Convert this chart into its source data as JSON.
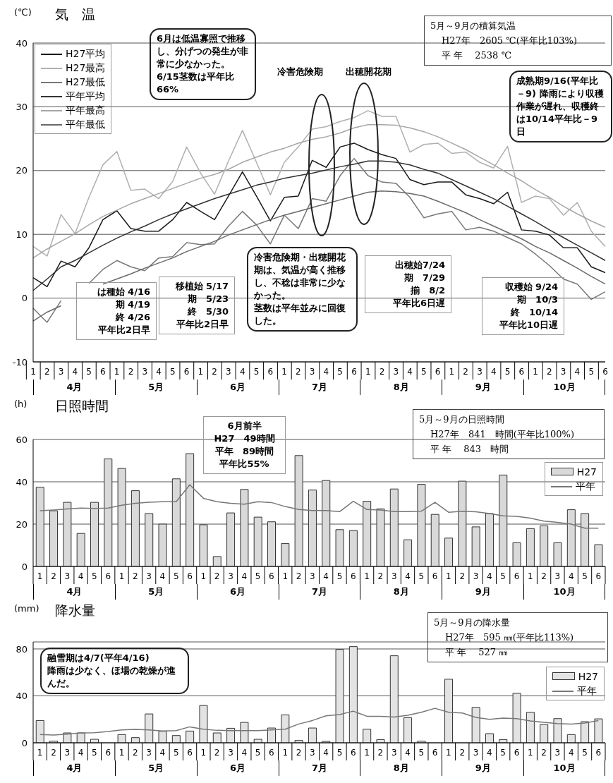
{
  "chart_data": [
    {
      "type": "line",
      "title": "気　温",
      "ylabel": "(℃)",
      "categories": [
        "1",
        "2",
        "3",
        "4",
        "5",
        "6",
        "1",
        "2",
        "3",
        "4",
        "5",
        "6",
        "1",
        "2",
        "3",
        "4",
        "5",
        "6",
        "1",
        "2",
        "3",
        "4",
        "5",
        "6",
        "1",
        "2",
        "3",
        "4",
        "5",
        "6",
        "1",
        "2",
        "3",
        "4",
        "5",
        "6",
        "1",
        "2",
        "3",
        "4",
        "5",
        "6"
      ],
      "series": [
        {
          "name": "H27平均",
          "color": "#1a1a1a",
          "values": [
            3.2,
            1.8,
            5.8,
            4.9,
            7.9,
            12.3,
            13.7,
            10.9,
            10.5,
            10.5,
            12.3,
            15.0,
            13.6,
            12.3,
            16.0,
            19.8,
            16.0,
            12.1,
            15.8,
            16.0,
            21.6,
            20.5,
            23.7,
            24.3,
            23.3,
            22.5,
            21.9,
            18.6,
            17.8,
            18.2,
            18.2,
            16.2,
            15.6,
            14.8,
            16.6,
            10.7,
            10.5,
            9.9,
            7.9,
            7.9,
            4.9,
            4.0
          ]
        },
        {
          "name": "H27最高",
          "color": "#b0b0b0",
          "values": [
            8.1,
            6.6,
            13.1,
            10.1,
            15.8,
            20.9,
            23.0,
            16.9,
            17.1,
            15.6,
            18.3,
            23.7,
            19.6,
            16.3,
            21.5,
            26.3,
            21.3,
            16.2,
            21.3,
            23.7,
            26.5,
            26.9,
            27.7,
            28.3,
            29.4,
            28.5,
            28.5,
            22.9,
            24.1,
            24.3,
            22.7,
            22.9,
            21.3,
            20.4,
            23.8,
            15.0,
            16.0,
            15.6,
            13.0,
            15.0,
            10.5,
            8.1
          ]
        },
        {
          "name": "H27最低",
          "color": "#777777",
          "values": [
            -1.6,
            -3.8,
            -0.4,
            null,
            2.3,
            4.5,
            5.9,
            4.9,
            4.3,
            6.3,
            6.5,
            8.7,
            8.4,
            8.5,
            11.3,
            13.6,
            11.5,
            8.5,
            13.0,
            10.9,
            15.6,
            15.2,
            19.2,
            21.9,
            19.2,
            18.2,
            18.0,
            15.8,
            12.6,
            13.2,
            13.6,
            10.7,
            11.1,
            10.5,
            9.5,
            8.5,
            6.9,
            5.1,
            3.0,
            2.2,
            -0.2,
            1.0
          ]
        },
        {
          "name": "平年平均",
          "color": "#333333",
          "values": [
            1.2,
            3.0,
            4.9,
            5.9,
            7.1,
            8.3,
            9.4,
            10.4,
            11.3,
            12.3,
            13.2,
            14.0,
            14.8,
            15.6,
            16.3,
            17.0,
            17.7,
            18.2,
            18.8,
            19.2,
            19.6,
            20.1,
            20.6,
            21.0,
            21.5,
            21.5,
            21.3,
            20.9,
            20.2,
            19.6,
            18.6,
            17.6,
            16.6,
            15.6,
            14.4,
            13.2,
            12.0,
            10.7,
            9.5,
            8.3,
            7.1,
            5.9
          ]
        },
        {
          "name": "平年最高",
          "color": "#a6a6a6",
          "values": [
            6.3,
            7.7,
            8.9,
            10.1,
            11.5,
            12.8,
            13.8,
            14.8,
            15.6,
            16.4,
            17.2,
            18.0,
            18.8,
            19.4,
            20.2,
            21.3,
            22.1,
            22.9,
            23.5,
            24.3,
            24.9,
            25.3,
            25.9,
            26.7,
            27.2,
            27.2,
            27.1,
            26.7,
            26.1,
            25.3,
            24.3,
            23.3,
            22.1,
            20.9,
            19.6,
            18.4,
            17.0,
            15.8,
            14.4,
            13.2,
            12.1,
            11.1
          ]
        },
        {
          "name": "平年最低",
          "color": "#6a6a6a",
          "values": [
            -3.6,
            -2.2,
            -1.2,
            null,
            null,
            2.2,
            3.0,
            3.8,
            4.7,
            5.5,
            6.3,
            7.3,
            8.1,
            8.9,
            9.9,
            10.7,
            11.5,
            12.3,
            13.0,
            13.6,
            14.2,
            14.8,
            15.4,
            16.0,
            16.6,
            16.8,
            16.7,
            16.4,
            16.0,
            15.2,
            14.3,
            13.4,
            12.3,
            11.3,
            10.3,
            9.3,
            8.1,
            7.1,
            5.9,
            4.7,
            3.4,
            2.2
          ]
        }
      ],
      "ylim": [
        -10,
        40
      ],
      "yticks": [
        -10,
        0,
        10,
        20,
        30,
        40
      ],
      "grid": "y",
      "legend": "top left",
      "annotations": [
        "4月",
        "5月",
        "6月",
        "7月",
        "8月",
        "9月",
        "10月",
        "6月は低温寡照で推移し、分げつの発生が非常に少なかった。6/15茎数は平年比66%",
        "冷害危険期",
        "出穂開花期",
        "5月～9月の積算気温",
        "H27年　2605 ℃(平年比103%)",
        "平 年　 2538 ℃",
        "成熟期9/16(平年比－9) 降雨により収穫作業が遅れ、収穫終は10/14平年比－9日",
        "は種始 4/16",
        "期 4/19",
        "終 4/26",
        "平年比2日早",
        "移植始 5/17",
        "期　5/23",
        "終　5/30",
        "平年比2日早",
        "冷害危険期・出穂開花期は、気温が高く推移し、不稔は非常に少なかった。",
        "茎数は平年並みに回復した。",
        "出穂始7/24",
        "期　7/29",
        "揃　8/2",
        "平年比6日遅",
        "収穫始 9/24",
        "期　10/3",
        "終　10/14",
        "平年比10日遅"
      ]
    },
    {
      "type": "bar",
      "title": "日照時間",
      "ylabel": "(h)",
      "categories": [
        "1",
        "2",
        "3",
        "4",
        "5",
        "6",
        "1",
        "2",
        "3",
        "4",
        "5",
        "6",
        "1",
        "2",
        "3",
        "4",
        "5",
        "6",
        "1",
        "2",
        "3",
        "4",
        "5",
        "6",
        "1",
        "2",
        "3",
        "4",
        "5",
        "6",
        "1",
        "2",
        "3",
        "4",
        "5",
        "6",
        "1",
        "2",
        "3",
        "4",
        "5",
        "6"
      ],
      "series": [
        {
          "name": "H27",
          "color": "#d9d9d9",
          "values": [
            37.4,
            26.3,
            30.3,
            15.6,
            30.3,
            50.8,
            46.3,
            35.8,
            25.0,
            20.0,
            41.4,
            53.3,
            19.7,
            4.7,
            25.3,
            36.4,
            23.3,
            21.1,
            10.8,
            52.4,
            36.1,
            40.6,
            17.4,
            17.0,
            30.8,
            27.2,
            36.6,
            12.6,
            38.8,
            24.6,
            13.4,
            40.3,
            18.7,
            25.0,
            43.2,
            11.2,
            17.9,
            19.2,
            11.2,
            26.8,
            25.0,
            10.3
          ]
        },
        {
          "name": "平年",
          "type": "line",
          "color": "#777777",
          "values": [
            26.3,
            26.7,
            27.2,
            27.6,
            27.4,
            27.6,
            28.9,
            29.8,
            30.3,
            30.6,
            30.6,
            38.6,
            32.2,
            30.6,
            29.8,
            29.4,
            30.6,
            30.2,
            28.3,
            26.9,
            26.4,
            26.4,
            25.9,
            30.8,
            26.9,
            26.7,
            25.9,
            25.9,
            26.1,
            30.3,
            25.6,
            26.1,
            25.8,
            25.0,
            23.9,
            23.7,
            22.8,
            21.4,
            20.8,
            20.0,
            18.1,
            18.1
          ]
        }
      ],
      "ylim": [
        0,
        60
      ],
      "yticks": [
        0,
        20,
        40,
        60
      ],
      "grid": "y",
      "legend": "top right",
      "annotations": [
        "4月",
        "5月",
        "6月",
        "7月",
        "8月",
        "9月",
        "10月",
        "6月前半",
        "H27　49時間",
        "平年　89時間",
        "平年比55%",
        "5月～9月の日照時間",
        "H27年　841　時間(平年比100%)",
        "平 年　 843　時間"
      ]
    },
    {
      "type": "bar",
      "title": "降水量",
      "ylabel": "(mm)",
      "categories": [
        "1",
        "2",
        "3",
        "4",
        "5",
        "6",
        "1",
        "2",
        "3",
        "4",
        "5",
        "6",
        "1",
        "2",
        "3",
        "4",
        "5",
        "6",
        "1",
        "2",
        "3",
        "4",
        "5",
        "6",
        "1",
        "2",
        "3",
        "4",
        "5",
        "6",
        "1",
        "2",
        "3",
        "4",
        "5",
        "6",
        "1",
        "2",
        "3",
        "4",
        "5",
        "6"
      ],
      "series": [
        {
          "name": "H27",
          "color": "#e3e3e3",
          "values": [
            19,
            1.4,
            8.4,
            8.4,
            3,
            0,
            7,
            4.4,
            24.6,
            9.8,
            6.2,
            10,
            31.8,
            8.4,
            12.4,
            17.4,
            3,
            12.6,
            23.8,
            2,
            12.6,
            1.2,
            79.6,
            82,
            11.6,
            2.8,
            74.2,
            21.4,
            1.4,
            0,
            54.2,
            0,
            30.2,
            7.8,
            2.8,
            42.2,
            26,
            15.6,
            20.6,
            7,
            18,
            20.4
          ]
        },
        {
          "name": "平年",
          "type": "line",
          "color": "#777777",
          "values": [
            7,
            6.6,
            7.4,
            8.4,
            8.6,
            9.6,
            11,
            11.4,
            11,
            10,
            10.4,
            13.6,
            11.6,
            10.6,
            10.4,
            10.4,
            10.4,
            11,
            11.6,
            16,
            19,
            23,
            24,
            27,
            22.6,
            22.6,
            22,
            23.4,
            26,
            29.4,
            26,
            25.4,
            21.6,
            20,
            21,
            20.6,
            18.6,
            17.4,
            16.4,
            16,
            16.8,
            19
          ]
        }
      ],
      "ylim": [
        0,
        86
      ],
      "yticks": [
        0,
        40,
        80
      ],
      "grid": "y",
      "legend": "top right",
      "annotations": [
        "4月",
        "5月",
        "6月",
        "7月",
        "8月",
        "9月",
        "10月",
        "融雪期は4/7(平年4/16)",
        "降雨は少なく、ほ場の乾燥が進んだ。",
        "5月～9月の降水量",
        "H27年　595 ㎜(平年比113%)",
        "平 年　 527 ㎜"
      ]
    }
  ]
}
